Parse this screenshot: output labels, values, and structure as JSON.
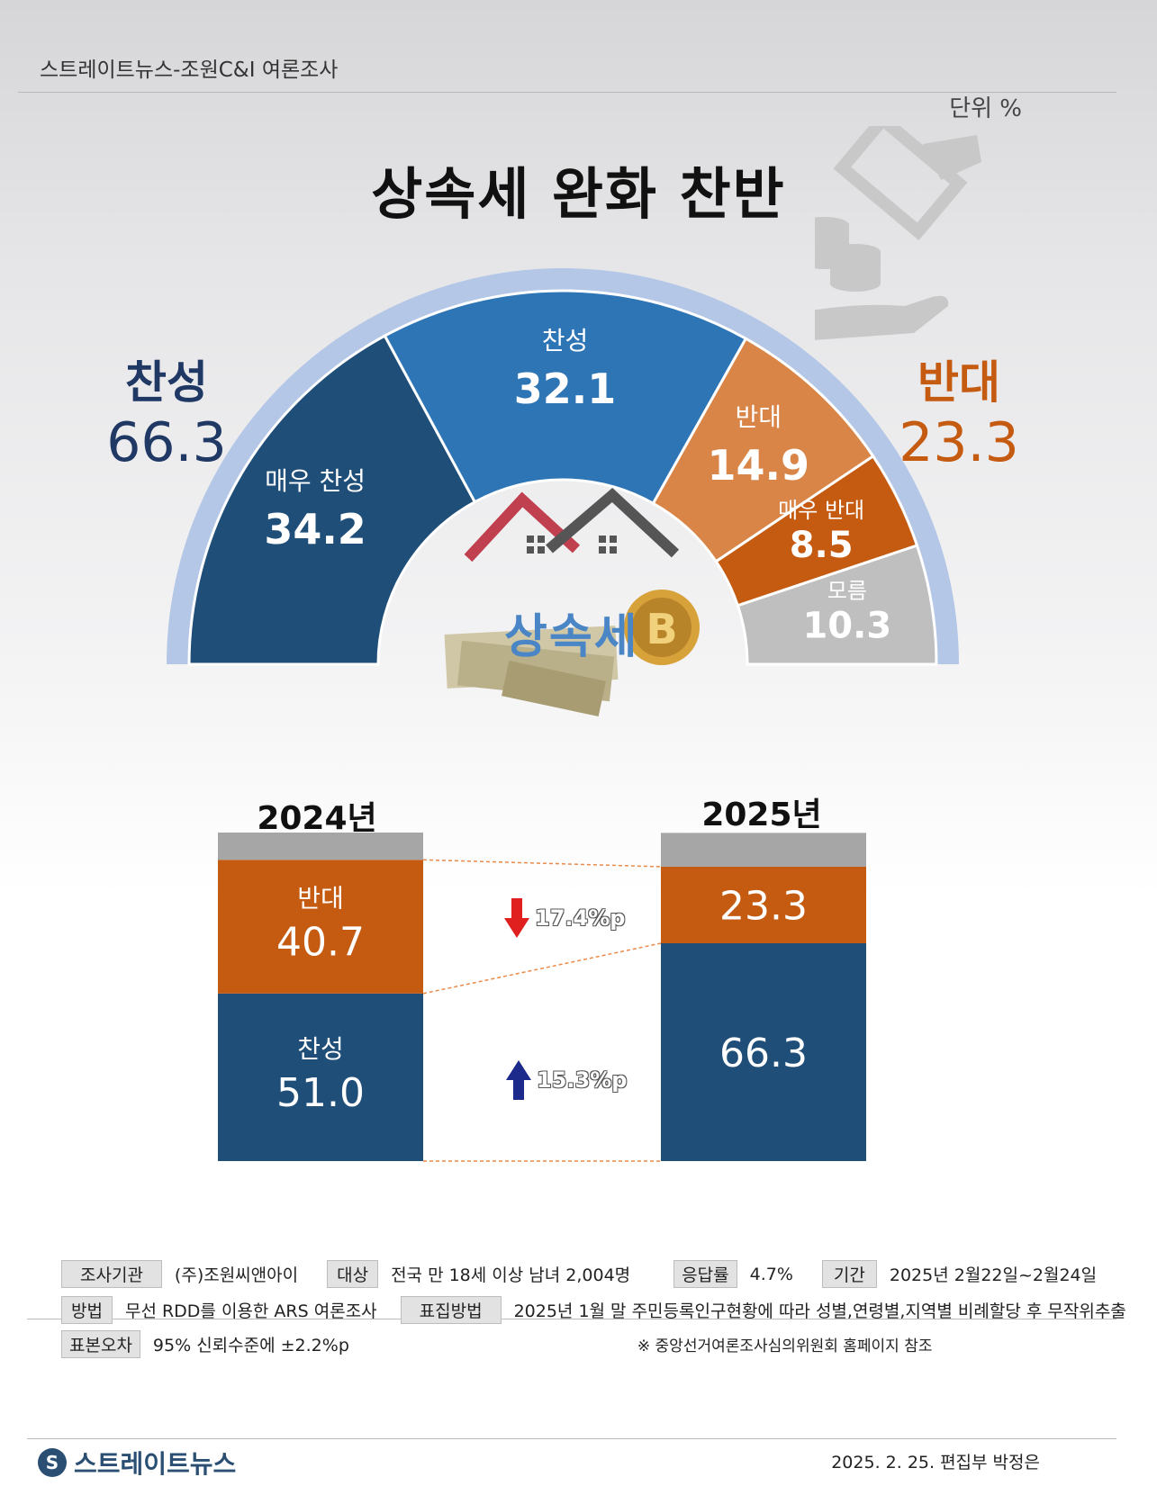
{
  "header": {
    "source": "스트레이트뉴스-조원C&I 여론조사",
    "unit": "단위 %",
    "title": "상속세 완화  찬반"
  },
  "summary": {
    "support_label": "찬성",
    "support_value": "66.3",
    "oppose_label": "반대",
    "oppose_value": "23.3"
  },
  "center_word": "상속세",
  "chart_data": [
    {
      "type": "pie",
      "title": "상속세 완화  찬반",
      "variant": "half-donut",
      "slices": [
        {
          "label": "매우 찬성",
          "value": 34.2,
          "color": "#1f4e79"
        },
        {
          "label": "찬성",
          "value": 32.1,
          "color": "#2e75b6"
        },
        {
          "label": "반대",
          "value": 14.9,
          "color": "#d98547"
        },
        {
          "label": "매우 반대",
          "value": 8.5,
          "color": "#c55a11"
        },
        {
          "label": "모름",
          "value": 10.3,
          "color": "#bfbfbf"
        }
      ]
    },
    {
      "type": "bar",
      "variant": "stacked",
      "categories": [
        "2024년",
        "2025년"
      ],
      "series": [
        {
          "name": "찬성",
          "values": [
            51.0,
            66.3
          ],
          "color": "#1f4e79",
          "labels": [
            "찬성",
            ""
          ]
        },
        {
          "name": "반대",
          "values": [
            40.7,
            23.3
          ],
          "color": "#c55a11",
          "labels": [
            "반대",
            ""
          ]
        },
        {
          "name": "모름",
          "values": [
            8.3,
            10.3
          ],
          "color": "#a6a6a6"
        }
      ],
      "ylim": [
        0,
        100
      ],
      "changes": [
        {
          "series": "반대",
          "direction": "down",
          "text": "17.4%p",
          "color": "#e0201f"
        },
        {
          "series": "찬성",
          "direction": "up",
          "text": "15.3%p",
          "color": "#1c2a8c"
        }
      ]
    }
  ],
  "footer": {
    "agency_tag": "조사기관",
    "agency": "(주)조원씨앤아이",
    "target_tag": "대상",
    "target": "전국 만 18세 이상 남녀 2,004명",
    "response_tag": "응답률",
    "response": "4.7%",
    "period_tag": "기간",
    "period": "2025년 2월22일~2월24일",
    "method_tag": "방법",
    "method": "무선 RDD를 이용한 ARS 여론조사",
    "sampling_tag": "표집방법",
    "sampling": "2025년 1월 말 주민등록인구현황에 따라 성별,연령별,지역별 비례할당 후 무작위추출",
    "error_tag": "표본오차",
    "error": "95% 신뢰수준에 ±2.2%p",
    "note": "※ 중앙선거여론조사심의위원회 홈페이지 참조",
    "brand": "스트레이트뉴스",
    "credit": "2025. 2. 25. 편집부 박정은"
  },
  "colors": {
    "support_dark": "#1f4e79",
    "support": "#2e75b6",
    "oppose_light": "#d98547",
    "oppose": "#c55a11",
    "unknown": "#bfbfbf",
    "ring": "#b4c7e7"
  }
}
